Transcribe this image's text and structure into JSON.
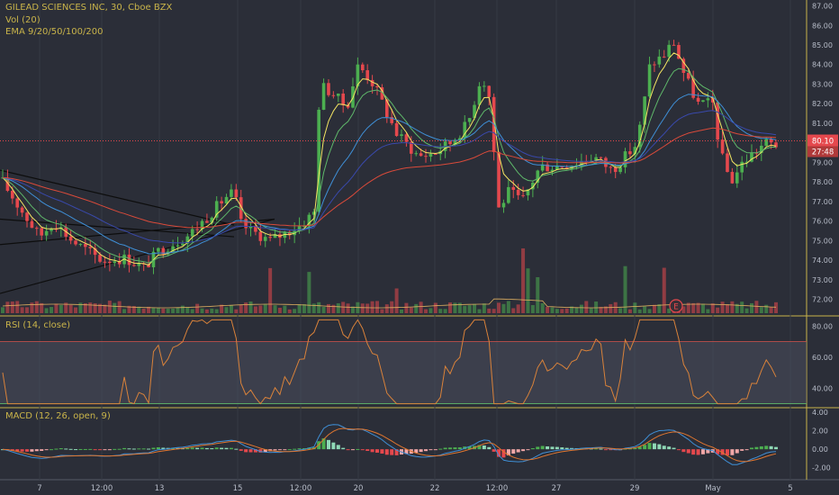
{
  "header": {
    "title": "GILEAD SCIENCES INC, 30, Cboe BZX",
    "vol_label": "Vol (20)",
    "ema_label": "EMA 9/20/50/100/200"
  },
  "badges": {
    "price": "80.10",
    "countdown": "27:48",
    "event": "E"
  },
  "colors": {
    "background": "#2b2e38",
    "up": "#4caf50",
    "down": "#e5484d",
    "ema9": "#f5e663",
    "ema20": "#5fb86a",
    "ema50": "#3f8fd6",
    "ema100": "#3949ab",
    "ema200": "#d94a3a",
    "rsi": "#d9823a",
    "macd": "#3f8fd6",
    "signal": "#e0762f"
  },
  "chart_data": [
    {
      "type": "candlestick",
      "title": "GILEAD SCIENCES INC, 30, Cboe BZX",
      "overlays": [
        "EMA 9",
        "EMA 20",
        "EMA 50",
        "EMA 100",
        "EMA 200"
      ],
      "y_ticks": [
        "87.00",
        "86.00",
        "85.00",
        "84.00",
        "83.00",
        "82.00",
        "81.00",
        "80.00",
        "79.00",
        "78.00",
        "77.00",
        "76.00",
        "75.00",
        "74.00",
        "73.00",
        "72.00"
      ],
      "x_ticks": [
        "7",
        "12:00",
        "13",
        "15",
        "12:00",
        "20",
        "22",
        "12:00",
        "27",
        "29",
        "May",
        "5"
      ],
      "ylim": [
        71.2,
        87.3
      ],
      "last_price": 80.1,
      "key_points": [
        {
          "x": "start",
          "y": 78.2
        },
        {
          "x": "7",
          "y": 75.2
        },
        {
          "x": "12:00",
          "y": 74.0
        },
        {
          "x": "13",
          "y": 74.5
        },
        {
          "x": "15",
          "y": 77.5
        },
        {
          "x": "12:00",
          "y": 75.8
        },
        {
          "x": "20",
          "y": 84.0
        },
        {
          "x": "22",
          "y": 79.5
        },
        {
          "x": "12:00",
          "y": 83.5
        },
        {
          "x": "27",
          "y": 78.5
        },
        {
          "x": "29",
          "y": 79.8
        },
        {
          "x": "29",
          "y": 85.5
        },
        {
          "x": "May",
          "y": 79.0
        },
        {
          "x": "May",
          "y": 78.0
        },
        {
          "x": "end",
          "y": 79.9
        }
      ]
    },
    {
      "type": "line",
      "title": "RSI (14, close)",
      "y_ticks": [
        "80.00",
        "60.00",
        "40.00"
      ],
      "band": [
        30,
        70
      ],
      "ylim": [
        28,
        86
      ]
    },
    {
      "type": "line",
      "title": "MACD (12, 26, open, 9)",
      "series": [
        "MACD",
        "Signal",
        "Histogram"
      ],
      "y_ticks": [
        "4.00",
        "2.00",
        "0.00",
        "-2.00"
      ],
      "ylim": [
        -3.2,
        4.4
      ]
    }
  ]
}
